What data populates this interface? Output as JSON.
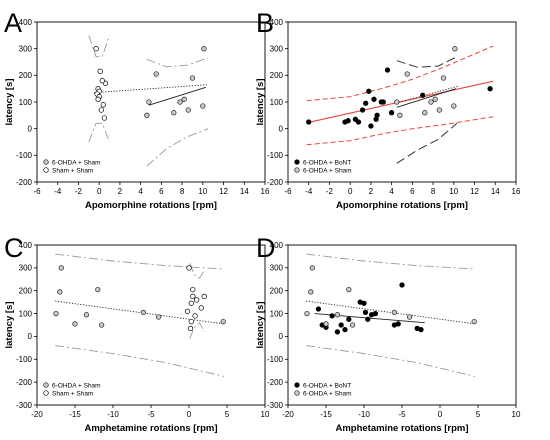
{
  "chart_data": [
    {
      "id": "A",
      "panel_label": "A",
      "type": "scatter",
      "xlabel": "Apomorphine rotations [rpm]",
      "ylabel": "latency [s]",
      "xlim": [
        -6,
        16
      ],
      "ylim": [
        -200,
        400
      ],
      "xticks": [
        -6,
        -4,
        -2,
        0,
        2,
        4,
        6,
        8,
        10,
        12,
        14,
        16
      ],
      "yticks": [
        -200,
        -100,
        0,
        100,
        200,
        300,
        400
      ],
      "legend_position": "bottom-left",
      "series": [
        {
          "name": "6-OHDA + Sham",
          "marker": "open-circle-gray",
          "points": [
            [
              5.5,
              205
            ],
            [
              4.8,
              100
            ],
            [
              4.6,
              50
            ],
            [
              7.2,
              60
            ],
            [
              7.8,
              100
            ],
            [
              8.2,
              110
            ],
            [
              8.6,
              70
            ],
            [
              9.0,
              190
            ],
            [
              10.0,
              85
            ],
            [
              10.1,
              300
            ]
          ]
        },
        {
          "name": "Sham + Sham",
          "marker": "open-circle",
          "points": [
            [
              -0.3,
              300
            ],
            [
              0.1,
              215
            ],
            [
              0.6,
              170
            ],
            [
              0.3,
              180
            ],
            [
              -0.1,
              150
            ],
            [
              0.0,
              140
            ],
            [
              -0.2,
              130
            ],
            [
              0.0,
              120
            ],
            [
              -0.1,
              110
            ],
            [
              0.4,
              90
            ],
            [
              0.2,
              70
            ],
            [
              0.5,
              40
            ]
          ]
        }
      ],
      "fits": [
        {
          "style": "dotted",
          "x": [
            -0.5,
            10.5
          ],
          "y": [
            135,
            165
          ]
        },
        {
          "style": "solid",
          "x": [
            4.8,
            10.3
          ],
          "y": [
            88,
            155
          ]
        }
      ],
      "bands": [
        {
          "style": "longdash-gray",
          "x": [
            -1.0,
            -0.3,
            0.3,
            1.0
          ],
          "y": [
            350,
            270,
            270,
            350
          ]
        },
        {
          "style": "longdash-gray",
          "x": [
            -1.0,
            -0.3,
            0.3,
            1.0
          ],
          "y": [
            -50,
            20,
            20,
            -50
          ]
        },
        {
          "style": "longdash-gray",
          "x": [
            4.6,
            6.5,
            8.5,
            10.5
          ],
          "y": [
            260,
            232,
            238,
            265
          ]
        },
        {
          "style": "longdash-gray",
          "x": [
            4.6,
            6.5,
            8.5,
            10.5
          ],
          "y": [
            -140,
            -75,
            -30,
            0
          ]
        }
      ]
    },
    {
      "id": "B",
      "panel_label": "B",
      "type": "scatter",
      "xlabel": "Apomorphine rotations [rpm]",
      "ylabel": "latency [s]",
      "xlim": [
        -6,
        16
      ],
      "ylim": [
        -200,
        400
      ],
      "xticks": [
        -6,
        -4,
        -2,
        0,
        2,
        4,
        6,
        8,
        10,
        12,
        14,
        16
      ],
      "yticks": [
        -200,
        -100,
        0,
        100,
        200,
        300,
        400
      ],
      "legend_position": "bottom-left",
      "series": [
        {
          "name": "6-OHDA + BoNT",
          "marker": "filled-circle",
          "points": [
            [
              -4,
              25
            ],
            [
              -0.5,
              25
            ],
            [
              -0.2,
              30
            ],
            [
              0.5,
              35
            ],
            [
              0.8,
              25
            ],
            [
              1.2,
              70
            ],
            [
              1.5,
              95
            ],
            [
              1.8,
              140
            ],
            [
              2.0,
              10
            ],
            [
              2.3,
              110
            ],
            [
              2.5,
              35
            ],
            [
              2.6,
              50
            ],
            [
              3.0,
              100
            ],
            [
              3.2,
              100
            ],
            [
              3.6,
              220
            ],
            [
              4.0,
              60
            ],
            [
              7.0,
              125
            ],
            [
              13.5,
              150
            ]
          ]
        },
        {
          "name": "6-OHDA + Sham",
          "marker": "open-circle-gray",
          "points": [
            [
              4.5,
              100
            ],
            [
              4.8,
              50
            ],
            [
              5.5,
              205
            ],
            [
              7.2,
              60
            ],
            [
              7.8,
              100
            ],
            [
              8.2,
              110
            ],
            [
              8.6,
              70
            ],
            [
              9.0,
              190
            ],
            [
              10.0,
              85
            ],
            [
              10.1,
              300
            ]
          ]
        }
      ],
      "fits": [
        {
          "style": "solid-red",
          "x": [
            -4.2,
            13.8
          ],
          "y": [
            22,
            178
          ]
        },
        {
          "style": "dotted",
          "x": [
            4.5,
            10.5
          ],
          "y": [
            97,
            160
          ]
        },
        {
          "style": "solid",
          "x": [
            4.5,
            10.2
          ],
          "y": [
            80,
            150
          ]
        }
      ],
      "bands": [
        {
          "style": "dash-red",
          "x": [
            -4.2,
            0,
            3,
            6,
            9,
            13.8
          ],
          "y": [
            105,
            120,
            150,
            185,
            230,
            310
          ]
        },
        {
          "style": "dash-red",
          "x": [
            -4.2,
            0,
            3,
            6,
            9,
            13.8
          ],
          "y": [
            -60,
            -45,
            -20,
            0,
            15,
            45
          ]
        },
        {
          "style": "longdash-black",
          "x": [
            4.5,
            6.5,
            8.5,
            10.3
          ],
          "y": [
            255,
            230,
            235,
            270
          ]
        },
        {
          "style": "longdash-black",
          "x": [
            4.5,
            6.5,
            8.5,
            10.3
          ],
          "y": [
            -130,
            -80,
            -40,
            20
          ]
        }
      ]
    },
    {
      "id": "C",
      "panel_label": "C",
      "type": "scatter",
      "xlabel": "Amphetamine rotations [rpm]",
      "ylabel": "latency [s]",
      "xlim": [
        -20,
        10
      ],
      "ylim": [
        -300,
        400
      ],
      "xticks": [
        -20,
        -15,
        -10,
        -5,
        0,
        5,
        10
      ],
      "yticks": [
        -300,
        -200,
        -100,
        0,
        100,
        200,
        300,
        400
      ],
      "legend_position": "bottom-left",
      "series": [
        {
          "name": "6-OHDA + Sham",
          "marker": "open-circle-gray",
          "points": [
            [
              -16.8,
              300
            ],
            [
              -17.0,
              195
            ],
            [
              -17.5,
              100
            ],
            [
              -15.0,
              55
            ],
            [
              -13.5,
              95
            ],
            [
              -12.0,
              205
            ],
            [
              -11.5,
              50
            ],
            [
              -6.0,
              105
            ],
            [
              -4.0,
              85
            ],
            [
              4.5,
              65
            ]
          ]
        },
        {
          "name": "Sham + Sham",
          "marker": "open-circle",
          "points": [
            [
              0.0,
              300
            ],
            [
              0.5,
              205
            ],
            [
              0.5,
              175
            ],
            [
              0.3,
              145
            ],
            [
              1.0,
              160
            ],
            [
              -0.2,
              110
            ],
            [
              0.8,
              90
            ],
            [
              1.6,
              125
            ],
            [
              2.0,
              175
            ],
            [
              0.3,
              65
            ],
            [
              0.2,
              35
            ]
          ]
        }
      ],
      "fits": [
        {
          "style": "dotted",
          "x": [
            -17.6,
            4.6
          ],
          "y": [
            155,
            55
          ]
        }
      ],
      "bands": [
        {
          "style": "longdash-gray",
          "x": [
            -17.6,
            -10,
            -3,
            4.6
          ],
          "y": [
            360,
            330,
            310,
            295
          ]
        },
        {
          "style": "longdash-gray",
          "x": [
            -17.6,
            -10,
            -3,
            4.6
          ],
          "y": [
            -40,
            -75,
            -115,
            -175
          ]
        },
        {
          "style": "longdash-gray",
          "x": [
            0.1,
            0.7,
            1.4,
            2.0
          ],
          "y": [
            320,
            270,
            255,
            290
          ]
        },
        {
          "style": "longdash-gray",
          "x": [
            0.1,
            0.7,
            1.4,
            2.0
          ],
          "y": [
            -10,
            40,
            60,
            20
          ]
        }
      ]
    },
    {
      "id": "D",
      "panel_label": "D",
      "type": "scatter",
      "xlabel": "Amphetamine rotations [rpm]",
      "ylabel": "latency [s]",
      "xlim": [
        -20,
        10
      ],
      "ylim": [
        -300,
        400
      ],
      "xticks": [
        -20,
        -15,
        -10,
        -5,
        0,
        5,
        10
      ],
      "yticks": [
        -300,
        -200,
        -100,
        0,
        100,
        200,
        300,
        400
      ],
      "legend_position": "bottom-left",
      "series": [
        {
          "name": "6-OHDA + BoNT",
          "marker": "filled-circle",
          "points": [
            [
              -16.0,
              120
            ],
            [
              -15.5,
              50
            ],
            [
              -15.0,
              40
            ],
            [
              -14.2,
              90
            ],
            [
              -13.5,
              20
            ],
            [
              -13.0,
              50
            ],
            [
              -12.5,
              30
            ],
            [
              -12.0,
              75
            ],
            [
              -10.5,
              150
            ],
            [
              -10.0,
              145
            ],
            [
              -9.8,
              105
            ],
            [
              -9.5,
              75
            ],
            [
              -9.0,
              95
            ],
            [
              -8.5,
              100
            ],
            [
              -6.0,
              50
            ],
            [
              -5.5,
              55
            ],
            [
              -5.0,
              225
            ],
            [
              -3.0,
              35
            ],
            [
              -2.5,
              30
            ]
          ]
        },
        {
          "name": "6-OHDA + Sham",
          "marker": "open-circle-gray",
          "points": [
            [
              -16.8,
              300
            ],
            [
              -17.0,
              195
            ],
            [
              -17.5,
              100
            ],
            [
              -15.0,
              55
            ],
            [
              -13.5,
              95
            ],
            [
              -12.0,
              205
            ],
            [
              -11.5,
              50
            ],
            [
              -6.0,
              105
            ],
            [
              -4.0,
              85
            ],
            [
              4.5,
              65
            ]
          ]
        }
      ],
      "fits": [
        {
          "style": "dotted",
          "x": [
            -17.6,
            4.6
          ],
          "y": [
            155,
            55
          ]
        },
        {
          "style": "solid",
          "x": [
            -16.5,
            -2.0
          ],
          "y": [
            100,
            60
          ]
        }
      ],
      "bands": [
        {
          "style": "longdash-gray",
          "x": [
            -17.6,
            -10,
            -3,
            4.6
          ],
          "y": [
            360,
            330,
            310,
            295
          ]
        },
        {
          "style": "longdash-gray",
          "x": [
            -17.6,
            -10,
            -3,
            4.6
          ],
          "y": [
            -40,
            -75,
            -115,
            -175
          ]
        }
      ]
    }
  ]
}
